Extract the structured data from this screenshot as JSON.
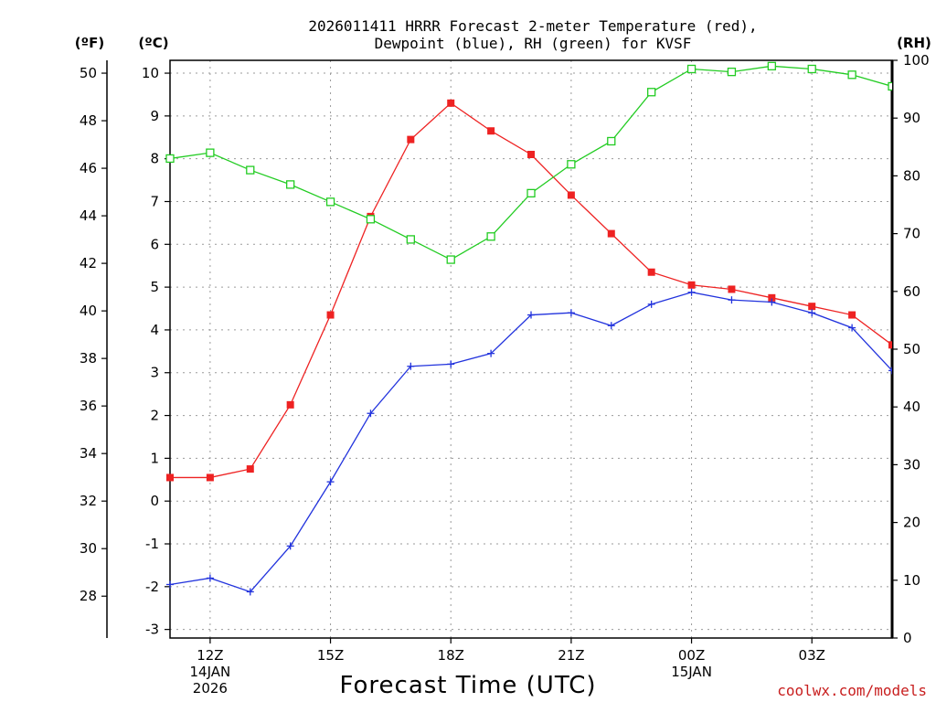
{
  "chart_data": {
    "type": "line",
    "title_line1": "2026011411 HRRR Forecast 2-meter Temperature (red),",
    "title_line2": "Dewpoint (blue), RH (green) for KVSF",
    "xlabel": "Forecast Time (UTC)",
    "units": {
      "fahrenheit": "(ºF)",
      "celsius": "(ºC)",
      "rh": "(RH)"
    },
    "hours": [
      11,
      12,
      13,
      14,
      15,
      16,
      17,
      18,
      19,
      20,
      21,
      22,
      23,
      24,
      25,
      26,
      27,
      28,
      29
    ],
    "x_range": [
      11,
      29
    ],
    "x_ticks": [
      {
        "hour": 12,
        "label": "12Z",
        "sub1": "14JAN",
        "sub2": "2026"
      },
      {
        "hour": 15,
        "label": "15Z",
        "sub1": "",
        "sub2": ""
      },
      {
        "hour": 18,
        "label": "18Z",
        "sub1": "",
        "sub2": ""
      },
      {
        "hour": 21,
        "label": "21Z",
        "sub1": "",
        "sub2": ""
      },
      {
        "hour": 24,
        "label": "00Z",
        "sub1": "15JAN",
        "sub2": ""
      },
      {
        "hour": 27,
        "label": "03Z",
        "sub1": "",
        "sub2": ""
      }
    ],
    "c_ticks": [
      "-3",
      "-2",
      "-1",
      "0",
      "1",
      "2",
      "3",
      "4",
      "5",
      "6",
      "7",
      "8",
      "9",
      "10"
    ],
    "f_ticks": [
      "28",
      "30",
      "32",
      "34",
      "36",
      "38",
      "40",
      "42",
      "44",
      "46",
      "48",
      "50"
    ],
    "rh_ticks": [
      "0",
      "10",
      "20",
      "30",
      "40",
      "50",
      "60",
      "70",
      "80",
      "90",
      "100"
    ],
    "c_range": [
      -3.2,
      10.3
    ],
    "rh_range": [
      0,
      100
    ],
    "series": [
      {
        "name": "Temperature",
        "unit": "C",
        "color": "#ee2222",
        "marker": "filled-square",
        "values": [
          0.55,
          0.55,
          0.75,
          2.25,
          4.35,
          6.65,
          8.45,
          9.3,
          8.65,
          8.1,
          7.15,
          6.25,
          5.35,
          5.05,
          4.95,
          4.75,
          4.55,
          4.35,
          3.65
        ]
      },
      {
        "name": "Dewpoint",
        "unit": "C",
        "color": "#2233dd",
        "marker": "plus",
        "values": [
          -1.95,
          -1.8,
          -2.12,
          -1.05,
          0.45,
          2.05,
          3.15,
          3.2,
          3.45,
          4.35,
          4.4,
          4.1,
          4.6,
          4.88,
          4.7,
          4.65,
          4.4,
          4.05,
          3.05
        ]
      },
      {
        "name": "RH",
        "unit": "%",
        "color": "#22cc22",
        "marker": "open-square",
        "values": [
          83,
          84,
          81,
          78.5,
          75.5,
          72.5,
          69,
          65.5,
          69.5,
          77,
          82,
          86,
          94.5,
          98.5,
          98,
          99,
          98.5,
          97.5,
          95.5
        ]
      }
    ]
  },
  "credit": "coolwx.com/models"
}
